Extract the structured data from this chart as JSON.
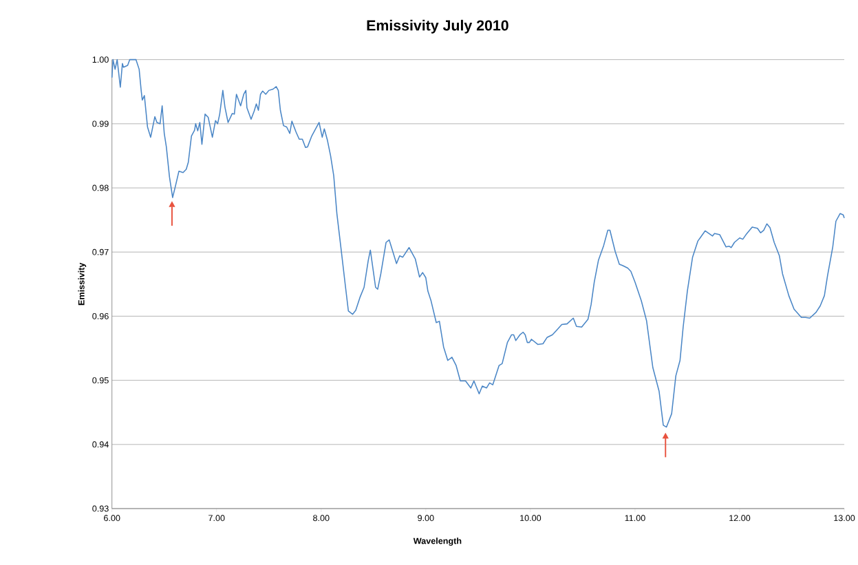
{
  "chart_data": {
    "type": "line",
    "title": "Emissivity July 2010",
    "xlabel": "Wavelength",
    "ylabel": "Emissivity",
    "xlim": [
      6,
      13
    ],
    "ylim": [
      0.93,
      1.0
    ],
    "xticks": [
      {
        "value": 6,
        "label": "6.00"
      },
      {
        "value": 7,
        "label": "7.00"
      },
      {
        "value": 8,
        "label": "8.00"
      },
      {
        "value": 9,
        "label": "9.00"
      },
      {
        "value": 10,
        "label": "10.00"
      },
      {
        "value": 11,
        "label": "11.00"
      },
      {
        "value": 12,
        "label": "12.00"
      },
      {
        "value": 13,
        "label": "13.00"
      }
    ],
    "yticks": [
      {
        "value": 0.93,
        "label": "0.93"
      },
      {
        "value": 0.94,
        "label": "0.94"
      },
      {
        "value": 0.95,
        "label": "0.95"
      },
      {
        "value": 0.96,
        "label": "0.96"
      },
      {
        "value": 0.97,
        "label": "0.97"
      },
      {
        "value": 0.98,
        "label": "0.98"
      },
      {
        "value": 0.99,
        "label": "0.99"
      },
      {
        "value": 1.0,
        "label": "1.00"
      }
    ],
    "grid": "y",
    "marker": "none",
    "line_style": "solid",
    "series": [
      {
        "color": "#4a86c6",
        "x": [
          6.0,
          6.01,
          6.03,
          6.05,
          6.08,
          6.1,
          6.11,
          6.15,
          6.17,
          6.23,
          6.26,
          6.28,
          6.29,
          6.31,
          6.34,
          6.37,
          6.39,
          6.41,
          6.43,
          6.46,
          6.48,
          6.5,
          6.52,
          6.55,
          6.58,
          6.61,
          6.64,
          6.68,
          6.71,
          6.73,
          6.76,
          6.79,
          6.8,
          6.82,
          6.84,
          6.86,
          6.89,
          6.92,
          6.96,
          6.99,
          7.01,
          7.03,
          7.06,
          7.08,
          7.11,
          7.15,
          7.17,
          7.19,
          7.23,
          7.26,
          7.28,
          7.29,
          7.33,
          7.36,
          7.38,
          7.4,
          7.42,
          7.44,
          7.47,
          7.5,
          7.54,
          7.57,
          7.59,
          7.61,
          7.64,
          7.67,
          7.7,
          7.72,
          7.76,
          7.79,
          7.82,
          7.85,
          7.87,
          7.91,
          7.94,
          7.98,
          8.01,
          8.03,
          8.06,
          8.09,
          8.12,
          8.15,
          8.19,
          8.23,
          8.26,
          8.3,
          8.33,
          8.37,
          8.41,
          8.45,
          8.47,
          8.52,
          8.54,
          8.57,
          8.62,
          8.65,
          8.72,
          8.75,
          8.78,
          8.84,
          8.9,
          8.94,
          8.97,
          9.0,
          9.02,
          9.05,
          9.1,
          9.13,
          9.17,
          9.21,
          9.25,
          9.29,
          9.33,
          9.38,
          9.43,
          9.46,
          9.51,
          9.54,
          9.58,
          9.61,
          9.64,
          9.7,
          9.73,
          9.78,
          9.82,
          9.84,
          9.86,
          9.9,
          9.93,
          9.95,
          9.97,
          9.99,
          10.01,
          10.07,
          10.12,
          10.16,
          10.21,
          10.25,
          10.3,
          10.35,
          10.41,
          10.44,
          10.49,
          10.55,
          10.58,
          10.61,
          10.65,
          10.7,
          10.74,
          10.76,
          10.81,
          10.85,
          10.88,
          10.93,
          10.96,
          11.0,
          11.06,
          11.11,
          11.17,
          11.23,
          11.27,
          11.3,
          11.35,
          11.39,
          11.43,
          11.46,
          11.5,
          11.55,
          11.6,
          11.67,
          11.74,
          11.76,
          11.81,
          11.87,
          11.9,
          11.92,
          11.95,
          12.0,
          12.03,
          12.06,
          12.12,
          12.17,
          12.2,
          12.23,
          12.26,
          12.29,
          12.33,
          12.38,
          12.41,
          12.47,
          12.52,
          12.59,
          12.63,
          12.67,
          12.73,
          12.77,
          12.81,
          12.84,
          12.89,
          12.92,
          12.96,
          12.99,
          13.0
        ],
        "values": [
          0.9972,
          1.0,
          0.9985,
          1.0,
          0.9957,
          0.9994,
          0.9988,
          0.9991,
          1.0,
          1.0,
          0.9985,
          0.9951,
          0.9937,
          0.9944,
          0.9895,
          0.9879,
          0.9895,
          0.9911,
          0.9902,
          0.99,
          0.9928,
          0.9885,
          0.9864,
          0.9817,
          0.9785,
          0.9805,
          0.9826,
          0.9824,
          0.9829,
          0.984,
          0.9881,
          0.989,
          0.99,
          0.9889,
          0.9902,
          0.9868,
          0.9915,
          0.991,
          0.9879,
          0.9905,
          0.99,
          0.9915,
          0.9952,
          0.9926,
          0.9902,
          0.9916,
          0.9915,
          0.9946,
          0.9928,
          0.9946,
          0.9952,
          0.9925,
          0.9907,
          0.992,
          0.9931,
          0.9921,
          0.9946,
          0.9951,
          0.9946,
          0.9952,
          0.9954,
          0.9958,
          0.9952,
          0.9921,
          0.9897,
          0.9895,
          0.9885,
          0.9904,
          0.9887,
          0.9876,
          0.9876,
          0.9863,
          0.9864,
          0.9881,
          0.989,
          0.9902,
          0.9879,
          0.9892,
          0.9874,
          0.985,
          0.9819,
          0.976,
          0.9705,
          0.9649,
          0.9608,
          0.9603,
          0.9609,
          0.9629,
          0.9645,
          0.9687,
          0.9703,
          0.9645,
          0.9642,
          0.9666,
          0.9715,
          0.9719,
          0.9682,
          0.9694,
          0.9692,
          0.9707,
          0.9689,
          0.9661,
          0.9668,
          0.966,
          0.9639,
          0.9624,
          0.959,
          0.9592,
          0.9552,
          0.9531,
          0.9536,
          0.9523,
          0.9499,
          0.9499,
          0.9488,
          0.9499,
          0.9479,
          0.9491,
          0.9488,
          0.9496,
          0.9493,
          0.9523,
          0.9526,
          0.9559,
          0.9571,
          0.9571,
          0.9562,
          0.9571,
          0.9575,
          0.9571,
          0.9559,
          0.9559,
          0.9564,
          0.9556,
          0.9557,
          0.9567,
          0.9571,
          0.9578,
          0.9587,
          0.9588,
          0.9597,
          0.9584,
          0.9583,
          0.9595,
          0.9618,
          0.9653,
          0.9687,
          0.971,
          0.9734,
          0.9734,
          0.9701,
          0.9681,
          0.9679,
          0.9675,
          0.967,
          0.9653,
          0.9624,
          0.9593,
          0.952,
          0.9483,
          0.943,
          0.9427,
          0.9448,
          0.9507,
          0.9531,
          0.9583,
          0.9639,
          0.9692,
          0.9717,
          0.9733,
          0.9725,
          0.9729,
          0.9727,
          0.9708,
          0.9709,
          0.9707,
          0.9715,
          0.9722,
          0.972,
          0.9727,
          0.9739,
          0.9737,
          0.973,
          0.9734,
          0.9744,
          0.9738,
          0.9715,
          0.9694,
          0.9666,
          0.9632,
          0.9611,
          0.9598,
          0.9598,
          0.9597,
          0.9606,
          0.9616,
          0.9632,
          0.9663,
          0.9708,
          0.9748,
          0.976,
          0.9758,
          0.9753
        ]
      }
    ]
  }
}
